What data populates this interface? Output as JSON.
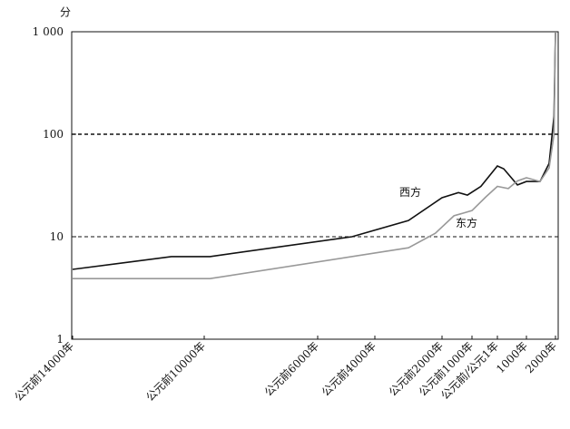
{
  "chart_data": {
    "type": "line",
    "y_axis_label": "分",
    "log_scale": true,
    "grid": true,
    "ylim": [
      1,
      1000
    ],
    "yticks": [
      1,
      10,
      100,
      {
        "value": 1000,
        "label": "1 000"
      }
    ],
    "xlim": [
      -14000,
      2000
    ],
    "xticks": [
      {
        "value": -14000,
        "label": "公元前14000年"
      },
      {
        "value": -10000,
        "label": "公元前10000年"
      },
      {
        "value": -6000,
        "label": "公元前6000年"
      },
      {
        "value": -4000,
        "label": "公元前4000年"
      },
      {
        "value": -2000,
        "label": "公元前2000年"
      },
      {
        "value": -1000,
        "label": "公元前1000年"
      },
      {
        "value": 0,
        "label": "公元前/公元1年"
      },
      {
        "value": 1000,
        "label": "1000年"
      },
      {
        "value": 2000,
        "label": "2000年"
      }
    ],
    "series": [
      {
        "name": "西方",
        "color": "#111111",
        "x": [
          -14000,
          -11000,
          -9800,
          -4800,
          -3000,
          -2000,
          -1450,
          -1150,
          -650,
          0,
          220,
          690,
          1000,
          1470,
          1780,
          1950,
          2000
        ],
        "values": [
          4.8,
          6.4,
          6.4,
          10,
          14.4,
          24,
          27,
          25.5,
          31,
          49,
          46,
          32,
          34.6,
          34.6,
          52,
          150,
          1000
        ]
      },
      {
        "name": "东方",
        "color": "#999999",
        "x": [
          -14000,
          -9800,
          -3000,
          -2200,
          -1600,
          -1000,
          -450,
          0,
          375,
          690,
          1000,
          1470,
          1780,
          1950,
          2000
        ],
        "values": [
          3.9,
          3.9,
          7.8,
          10.8,
          16,
          18,
          24.5,
          31,
          29.5,
          35,
          37.6,
          34.6,
          47,
          100,
          1000
        ]
      }
    ]
  }
}
